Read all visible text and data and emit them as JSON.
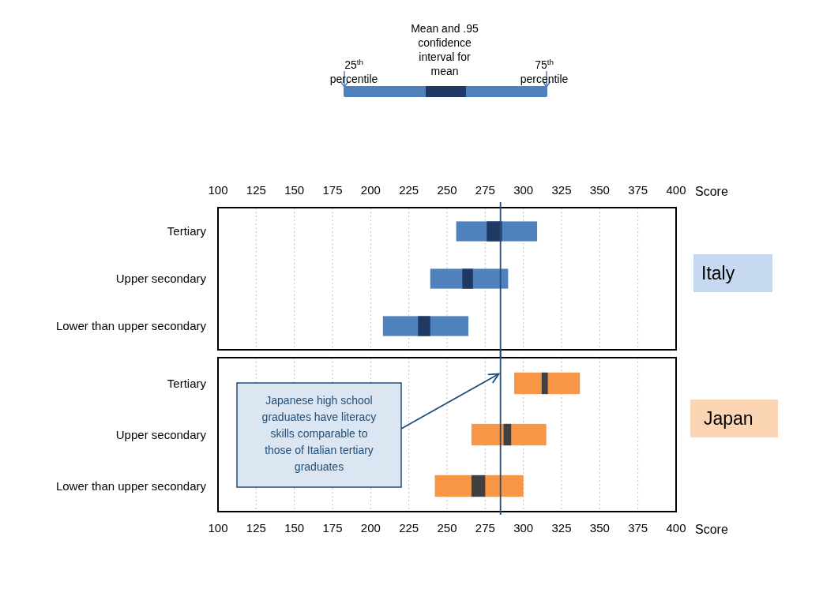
{
  "chart_data": [
    {
      "type": "bar",
      "orientation": "horizontal",
      "categories": [
        "Tertiary",
        "Upper secondary",
        "Lower than upper secondary"
      ],
      "series": [
        {
          "color": "#4f81bd",
          "base": [
            256,
            239,
            208
          ],
          "values": [
            53,
            51,
            56
          ]
        },
        {
          "color": "#1f3864",
          "base": [
            276,
            260,
            231
          ],
          "values": [
            10,
            7,
            8
          ]
        }
      ],
      "xlim": [
        100,
        400
      ],
      "xticks": [
        100,
        125,
        150,
        175,
        200,
        225,
        250,
        275,
        300,
        325,
        350,
        375,
        400
      ],
      "xlabel": "Score",
      "grid": "x",
      "ref_lines": [
        {
          "axis": "x",
          "value": 285,
          "color": "#1f4e79"
        }
      ],
      "annotations": [
        "25$^{th}$ percentile",
        "Mean and .95 confidence interval for mean",
        "75$^{th}$ percentile",
        "Italy"
      ]
    },
    {
      "type": "bar",
      "orientation": "horizontal",
      "categories": [
        "Tertiary",
        "Upper secondary",
        "Lower than upper secondary"
      ],
      "series": [
        {
          "color": "#f79646",
          "base": [
            294,
            266,
            242
          ],
          "values": [
            43,
            49,
            58
          ]
        },
        {
          "color": "#404040",
          "base": [
            312,
            287,
            266
          ],
          "values": [
            4,
            5,
            9
          ]
        }
      ],
      "xlim": [
        100,
        400
      ],
      "xticks": [
        100,
        125,
        150,
        175,
        200,
        225,
        250,
        275,
        300,
        325,
        350,
        375,
        400
      ],
      "xlabel": "Score",
      "grid": "x",
      "ref_lines": [
        {
          "axis": "x",
          "value": 285,
          "color": "#1f4e79"
        }
      ],
      "annotations": [
        "Japanese high school graduates have literacy skills comparable to those of Italian tertiary graduates",
        "Japan"
      ]
    }
  ]
}
